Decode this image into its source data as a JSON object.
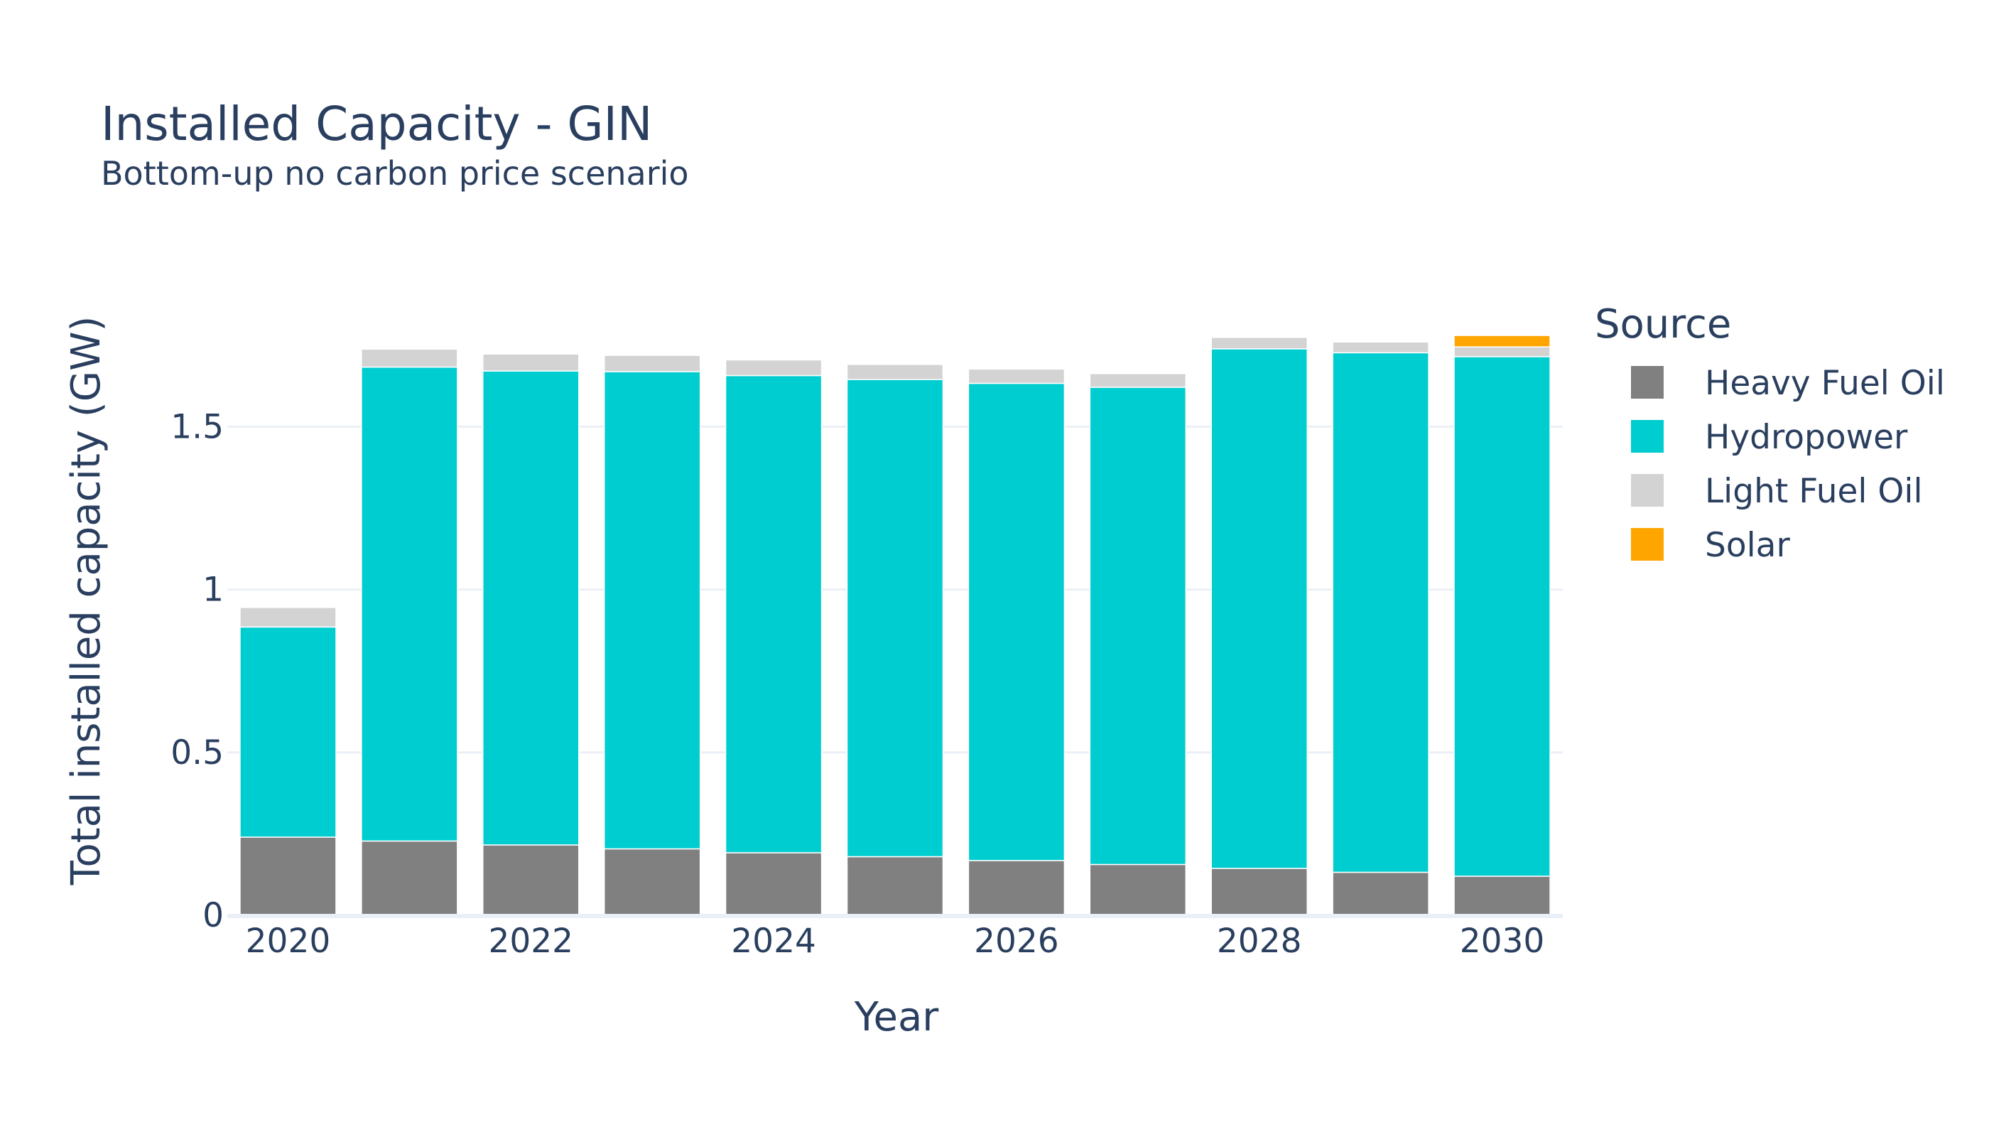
{
  "chart_data": {
    "type": "bar",
    "barmode": "stack",
    "title": "Installed Capacity - GIN",
    "subtitle": "Bottom-up no carbon price scenario",
    "xlabel": "Year",
    "ylabel": "Total installed capacity (GW)",
    "x": [
      2020,
      2021,
      2022,
      2023,
      2024,
      2025,
      2026,
      2027,
      2028,
      2029,
      2030
    ],
    "x_tick_labels": [
      "2020",
      "2022",
      "2024",
      "2026",
      "2028",
      "2030"
    ],
    "x_tick_values": [
      2020,
      2022,
      2024,
      2026,
      2028,
      2030
    ],
    "y_tick_labels": [
      "0",
      "0.5",
      "1",
      "1.5"
    ],
    "y_tick_values": [
      0,
      0.5,
      1,
      1.5
    ],
    "ylim": [
      0,
      1.85
    ],
    "grid": true,
    "legend": {
      "title": "Source",
      "position": "right"
    },
    "series": [
      {
        "name": "Heavy Fuel Oil",
        "color": "#808080",
        "values": [
          0.24,
          0.228,
          0.216,
          0.204,
          0.192,
          0.18,
          0.168,
          0.156,
          0.144,
          0.132,
          0.12
        ]
      },
      {
        "name": "Hydropower",
        "color": "#00cdd0",
        "values": [
          0.645,
          1.455,
          1.455,
          1.465,
          1.465,
          1.465,
          1.465,
          1.465,
          1.595,
          1.595,
          1.595
        ]
      },
      {
        "name": "Light Fuel Oil",
        "color": "#d3d3d3",
        "values": [
          0.06,
          0.055,
          0.052,
          0.05,
          0.048,
          0.046,
          0.044,
          0.042,
          0.035,
          0.033,
          0.03
        ]
      },
      {
        "name": "Solar",
        "color": "#ffa500",
        "values": [
          0,
          0,
          0,
          0,
          0,
          0,
          0,
          0,
          0,
          0,
          0.035
        ]
      }
    ]
  }
}
